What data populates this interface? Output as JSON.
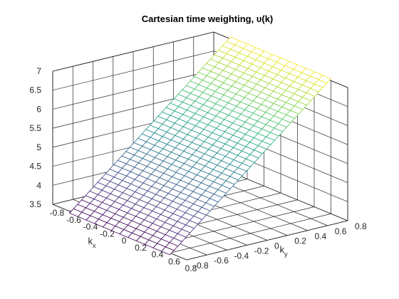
{
  "chart_data": {
    "type": "surface",
    "title": "Cartesian time weighting, υ(k)",
    "xlabel": "k",
    "xlabel_sub": "x",
    "ylabel": "k",
    "ylabel_sub": "y",
    "zlabel": "",
    "xlim": [
      -0.8,
      0.8
    ],
    "ylim": [
      -0.8,
      0.8
    ],
    "zlim": [
      3.5,
      7
    ],
    "xticks": [
      "-0.8",
      "-0.6",
      "-0.4",
      "-0.2",
      "0",
      "0.2",
      "0.4",
      "0.6",
      "0.8"
    ],
    "yticks": [
      "-0.8",
      "-0.6",
      "-0.4",
      "-0.2",
      "0",
      "0.2",
      "0.4",
      "0.6",
      "0.8"
    ],
    "zticks": [
      "3.5",
      "4",
      "4.5",
      "5",
      "5.5",
      "6",
      "6.5",
      "7"
    ],
    "grid": true,
    "colormap": "viridis",
    "surface": {
      "description": "v = 5.25 + 2.25*ky (planar, varies with ky only)",
      "x_range": [
        -0.6,
        0.6
      ],
      "y_range": [
        -0.8,
        0.8
      ],
      "z_at_y_min": 3.45,
      "z_at_y_max": 7.05,
      "nx": 13,
      "ny": 41
    }
  }
}
